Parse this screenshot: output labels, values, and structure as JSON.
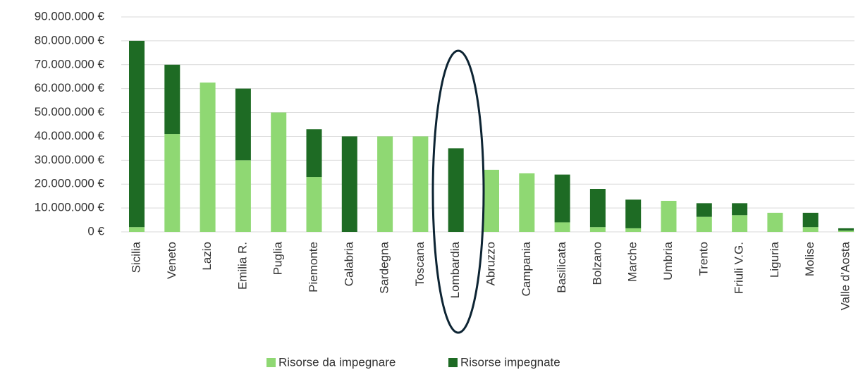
{
  "chart_data": {
    "type": "stacked_bar",
    "categories": [
      "Sicilia",
      "Veneto",
      "Lazio",
      "Emilia R.",
      "Puglia",
      "Piemonte",
      "Calabria",
      "Sardegna",
      "Toscana",
      "Lombardia",
      "Abruzzo",
      "Campania",
      "Basilicata",
      "Bolzano",
      "Marche",
      "Umbria",
      "Trento",
      "Friuli V.G.",
      "Liguria",
      "Molise",
      "Valle d'Aosta"
    ],
    "series": [
      {
        "name": "Risorse da impegnare",
        "color": "#8fd873",
        "values": [
          2000000,
          41000000,
          62500000,
          30000000,
          50000000,
          23000000,
          0,
          40000000,
          40000000,
          0,
          26000000,
          24500000,
          4000000,
          2000000,
          1500000,
          13000000,
          6300000,
          7000000,
          8000000,
          2000000,
          500000
        ]
      },
      {
        "name": "Risorse impegnate",
        "color": "#1e6b24",
        "values": [
          78000000,
          29000000,
          0,
          30000000,
          0,
          20000000,
          40000000,
          0,
          0,
          35000000,
          0,
          0,
          20000000,
          16000000,
          12000000,
          0,
          5700000,
          5000000,
          0,
          6000000,
          1000000
        ]
      }
    ],
    "ylim": [
      0,
      90000000
    ],
    "yticks": [
      {
        "value": 0,
        "label": "0 €"
      },
      {
        "value": 10000000,
        "label": "10.000.000 €"
      },
      {
        "value": 20000000,
        "label": "20.000.000 €"
      },
      {
        "value": 30000000,
        "label": "30.000.000 €"
      },
      {
        "value": 40000000,
        "label": "40.000.000 €"
      },
      {
        "value": 50000000,
        "label": "50.000.000 €"
      },
      {
        "value": 60000000,
        "label": "60.000.000 €"
      },
      {
        "value": 70000000,
        "label": "70.000.000 €"
      },
      {
        "value": 80000000,
        "label": "80.000.000 €"
      },
      {
        "value": 90000000,
        "label": "90.000.000 €"
      }
    ],
    "grid": true,
    "legend": "bottom"
  }
}
